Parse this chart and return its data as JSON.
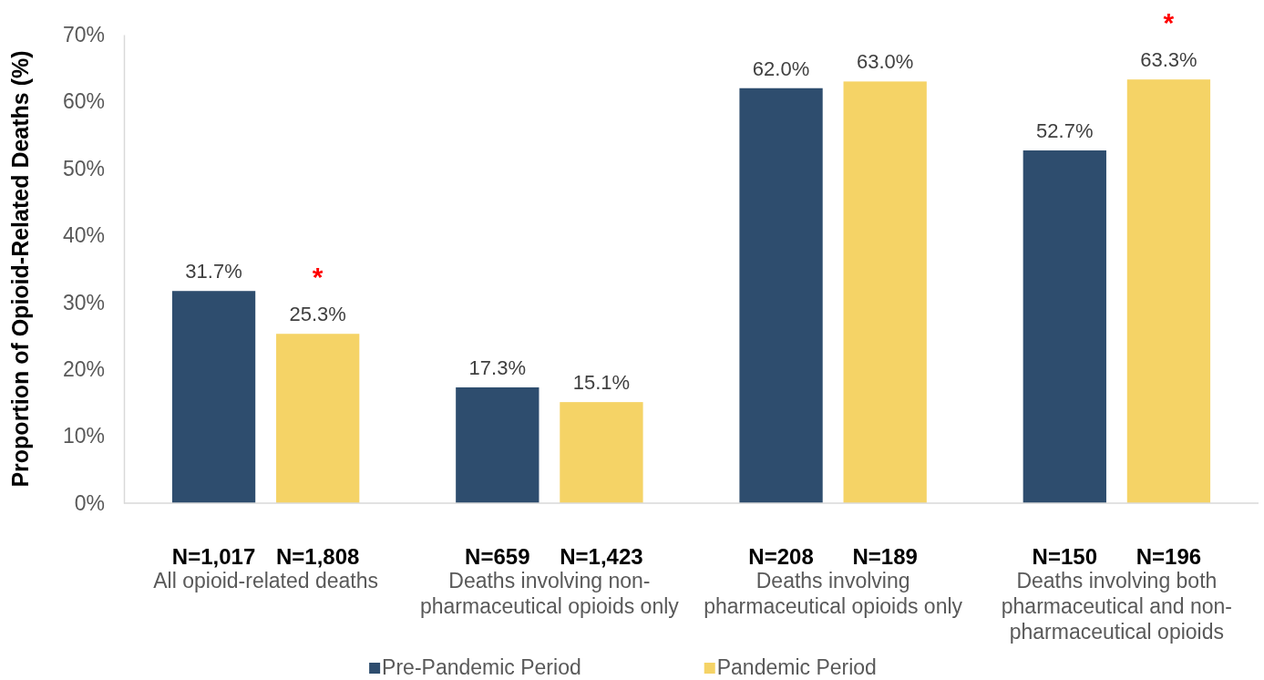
{
  "chart_data": {
    "type": "bar",
    "ylabel": "Proportion of Opioid-Related Deaths (%)",
    "categories": [
      "All opioid-related deaths",
      "Deaths involving non-pharmaceutical opioids only",
      "Deaths involving pharmaceutical opioids only",
      "Deaths involving both pharmaceutical and non-pharmaceutical opioids"
    ],
    "series": [
      {
        "name": "Pre-Pandemic Period",
        "color": "#2e4d6e",
        "values": [
          31.7,
          17.3,
          62.0,
          52.7
        ],
        "value_labels": [
          "31.7%",
          "17.3%",
          "62.0%",
          "52.7%"
        ]
      },
      {
        "name": "Pandemic Period",
        "color": "#f5d366",
        "values": [
          25.3,
          15.1,
          63.0,
          63.3
        ],
        "value_labels": [
          "25.3%",
          "15.1%",
          "63.0%",
          "63.3%"
        ]
      }
    ],
    "ylim": [
      0,
      70
    ],
    "yticks": [
      {
        "value": 0,
        "label": "0%"
      },
      {
        "value": 10,
        "label": "10%"
      },
      {
        "value": 20,
        "label": "20%"
      },
      {
        "value": 30,
        "label": "30%"
      },
      {
        "value": 40,
        "label": "40%"
      },
      {
        "value": 50,
        "label": "50%"
      },
      {
        "value": 60,
        "label": "60%"
      },
      {
        "value": 70,
        "label": "70%"
      }
    ],
    "legend": "bottom",
    "annotations": [
      "N=1,017",
      "N=1,808",
      "N=659",
      "N=1,423",
      "N=208",
      "N=189",
      "N=150",
      "N=196",
      "*",
      "*"
    ]
  }
}
